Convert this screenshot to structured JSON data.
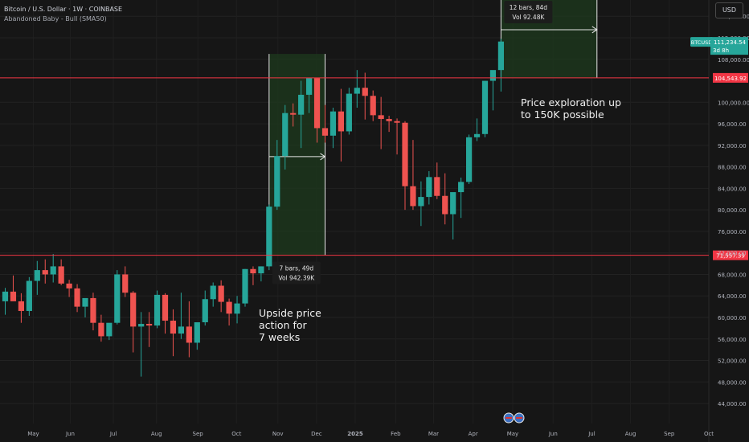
{
  "header": {
    "title": "Bitcoin / U.S. Dollar · 1W · COINBASE",
    "indicator": "Abandoned Baby - Bull (SMA50)"
  },
  "currency_button": "USD",
  "colors": {
    "background": "#161616",
    "up": "#26a69a",
    "down": "#ef5350",
    "hline": "#f23645",
    "range_fill": "#1e3a1e",
    "axis_text": "#b2b5be"
  },
  "chart_data": {
    "type": "candlestick",
    "interval": "1W",
    "x_ticks": [
      "May",
      "Jun",
      "Jul",
      "Aug",
      "Sep",
      "Oct",
      "Nov",
      "Dec",
      "2025",
      "Feb",
      "Mar",
      "Apr",
      "May",
      "Jun",
      "Jul",
      "Aug",
      "Sep",
      "Oct"
    ],
    "y_ticks": [
      44000,
      48000,
      52000,
      56000,
      60000,
      64000,
      68000,
      72000,
      76000,
      80000,
      84000,
      88000,
      92000,
      96000,
      100000,
      108000,
      112000,
      116000
    ],
    "y_tick_labels": [
      "44,000.00",
      "48,000.00",
      "52,000.00",
      "56,000.00",
      "60,000.00",
      "64,000.00",
      "68,000.00",
      "72,000.00",
      "76,000.00",
      "80,000.00",
      "84,000.00",
      "88,000.00",
      "92,000.00",
      "96,000.00",
      "100,000.00",
      "108,000.00",
      "112,000.00",
      "116,000.00"
    ],
    "ylim": [
      43000,
      118000
    ],
    "candles": [
      [
        63000,
        65500,
        60500,
        64800
      ],
      [
        64800,
        67800,
        63500,
        63000
      ],
      [
        63000,
        64500,
        59000,
        61200
      ],
      [
        61200,
        67500,
        60300,
        66800
      ],
      [
        66800,
        70500,
        64200,
        68800
      ],
      [
        68800,
        70800,
        66300,
        68000
      ],
      [
        68000,
        71800,
        66500,
        69500
      ],
      [
        69500,
        70800,
        66000,
        66300
      ],
      [
        66300,
        67000,
        63800,
        65400
      ],
      [
        65400,
        66200,
        61000,
        62000
      ],
      [
        62000,
        63500,
        60000,
        63600
      ],
      [
        63600,
        64600,
        57600,
        59000
      ],
      [
        59000,
        60500,
        55500,
        56500
      ],
      [
        56500,
        58500,
        55800,
        59000
      ],
      [
        59000,
        68800,
        58700,
        68000
      ],
      [
        68000,
        69500,
        63800,
        64600
      ],
      [
        64600,
        64900,
        53500,
        58300
      ],
      [
        58300,
        61000,
        49000,
        58800
      ],
      [
        58800,
        61000,
        54500,
        58500
      ],
      [
        58500,
        65000,
        58000,
        64200
      ],
      [
        64200,
        64500,
        57000,
        59400
      ],
      [
        59400,
        61500,
        52800,
        57000
      ],
      [
        57000,
        64600,
        56000,
        58300
      ],
      [
        58300,
        63000,
        52600,
        55300
      ],
      [
        55300,
        59000,
        54000,
        59100
      ],
      [
        59100,
        65000,
        58500,
        63400
      ],
      [
        63400,
        66500,
        62000,
        65900
      ],
      [
        65900,
        66900,
        61000,
        62900
      ],
      [
        62900,
        63500,
        58500,
        60700
      ],
      [
        60700,
        64000,
        58900,
        62600
      ],
      [
        62600,
        69000,
        62000,
        69000
      ],
      [
        69000,
        69500,
        66000,
        68200
      ],
      [
        68200,
        69500,
        66700,
        69500
      ],
      [
        69500,
        81000,
        68800,
        80600
      ],
      [
        80600,
        93000,
        80000,
        90000
      ],
      [
        90000,
        99500,
        87500,
        98000
      ],
      [
        98000,
        99800,
        95500,
        97700
      ],
      [
        97700,
        104000,
        91500,
        101400
      ],
      [
        101400,
        104500,
        98000,
        104500
      ],
      [
        104500,
        104500,
        92500,
        95200
      ],
      [
        95200,
        99500,
        92500,
        93800
      ],
      [
        93800,
        99000,
        91500,
        98300
      ],
      [
        98300,
        102500,
        89000,
        94600
      ],
      [
        94600,
        102700,
        94000,
        101600
      ],
      [
        101600,
        106000,
        99000,
        102700
      ],
      [
        102700,
        105500,
        96800,
        101200
      ],
      [
        101200,
        102200,
        96500,
        97600
      ],
      [
        97600,
        101000,
        91300,
        96900
      ],
      [
        96900,
        97500,
        94500,
        96500
      ],
      [
        96500,
        97000,
        90300,
        96200
      ],
      [
        96200,
        96500,
        80000,
        84400
      ],
      [
        84400,
        93000,
        80000,
        80700
      ],
      [
        80700,
        85300,
        77000,
        82400
      ],
      [
        82400,
        87200,
        81000,
        86100
      ],
      [
        86100,
        88800,
        82000,
        82600
      ],
      [
        82600,
        86800,
        77300,
        79200
      ],
      [
        79200,
        83000,
        74500,
        83300
      ],
      [
        83300,
        86000,
        78500,
        85200
      ],
      [
        85200,
        94000,
        84800,
        93500
      ],
      [
        93500,
        97000,
        92800,
        94100
      ],
      [
        94100,
        104000,
        93500,
        104000
      ],
      [
        104000,
        105800,
        98500,
        106000
      ],
      [
        106000,
        111800,
        102000,
        111300
      ]
    ],
    "hlines": [
      {
        "value": 104543.92,
        "label": "104,543.92"
      },
      {
        "value": 71557.39,
        "label": "71,557.39"
      }
    ],
    "price_badge": {
      "symbol": "BTCUSD",
      "value": "111,234.54",
      "countdown": "3d 8h"
    },
    "ranges": [
      {
        "start_index": 33,
        "end_index": 40,
        "top": 109000,
        "bottom": 71557.39,
        "arrow_value": 89900,
        "label_bars": "7 bars, 49d",
        "label_vol": "Vol 942.39K",
        "label_pos": "below"
      },
      {
        "start_index": 62,
        "end_index": 74,
        "top": 122000,
        "bottom": 104543.92,
        "arrow_value": 113500,
        "label_bars": "12 bars, 84d",
        "label_vol": "Vol 92.48K",
        "label_pos": "inside-top"
      }
    ]
  },
  "annotations": {
    "upside": [
      "Upside price",
      "action for",
      "7 weeks"
    ],
    "exploration": [
      "Price exploration up",
      "to 150K possible"
    ]
  }
}
